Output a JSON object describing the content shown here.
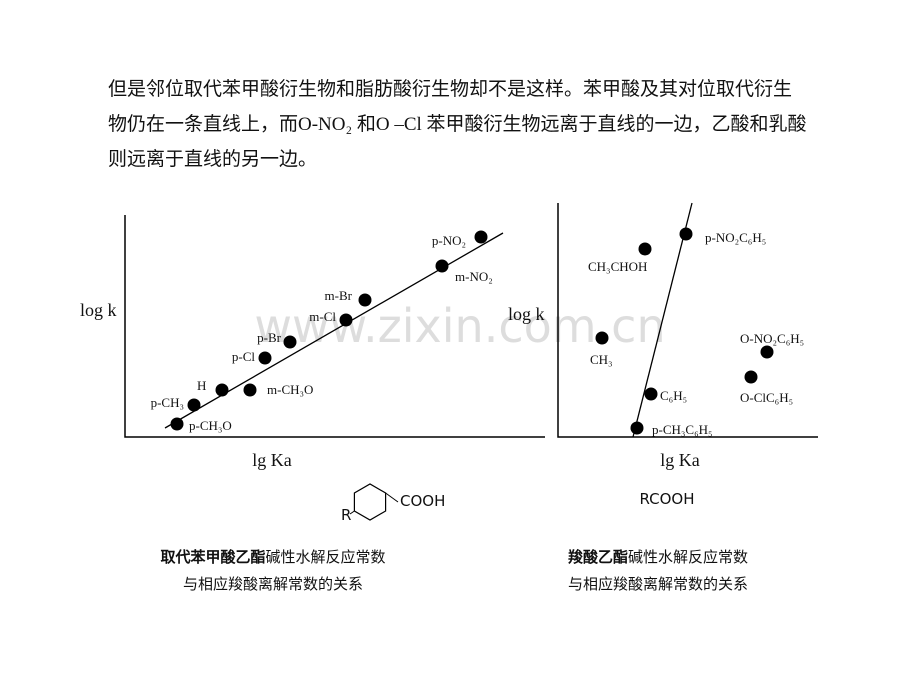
{
  "paragraph": "但是邻位取代苯甲酸衍生物和脂肪酸衍生物却不是这样。苯甲酸及其对位取代衍生物仍在一条直线上，而O-NO₂ 和O –Cl 苯甲酸衍生物远离于直线的一边，乙酸和乳酸则远离于直线的另一边。",
  "watermark": "www.zixin.com.cn",
  "figures": [
    {
      "y_label": "log k",
      "x_label": "lg Ka",
      "points": [
        {
          "label": "p-CH₃O"
        },
        {
          "label": "p-CH₃"
        },
        {
          "label": "H"
        },
        {
          "label": "m-CH₃O"
        },
        {
          "label": "p-Cl"
        },
        {
          "label": "p-Br"
        },
        {
          "label": "m-Cl"
        },
        {
          "label": "m-Br"
        },
        {
          "label": "m-NO₂"
        },
        {
          "label": "p-NO₂"
        }
      ],
      "structure": {
        "substituent": "R",
        "group": "COOH"
      },
      "caption": {
        "bold": "取代苯甲酸乙酯",
        "rest": "碱性水解反应常数",
        "line2": "与相应羧酸离解常数的关系"
      }
    },
    {
      "y_label": "log k",
      "x_label": "lg Ka",
      "points": [
        {
          "label": "p-NO₂C₆H₅"
        },
        {
          "label": "CH₃CHOH"
        },
        {
          "label": "CH₃"
        },
        {
          "label": "O-NO₂C₆H₅"
        },
        {
          "label": "O-ClC₆H₅"
        },
        {
          "label": "C₆H₅"
        },
        {
          "label": "p-CH₃C₆H₅"
        }
      ],
      "structure": {
        "formula": "RCOOH"
      },
      "caption": {
        "bold": "羧酸乙酯",
        "rest": "碱性水解反应常数",
        "line2": "与相应羧酸离解常数的关系"
      }
    }
  ]
}
